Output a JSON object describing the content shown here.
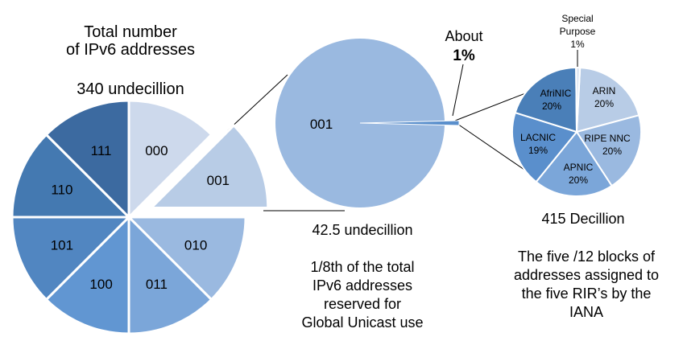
{
  "big_pie": {
    "title_line1": "Total number",
    "title_line2": "of IPv6 addresses",
    "total": "340 undecillion",
    "slices": [
      {
        "label": "000",
        "color": "#cdd9ec"
      },
      {
        "label": "001",
        "color": "#b8cce6"
      },
      {
        "label": "010",
        "color": "#9ab9e0"
      },
      {
        "label": "011",
        "color": "#7ba6d9"
      },
      {
        "label": "100",
        "color": "#6196d2"
      },
      {
        "label": "101",
        "color": "#5186c1"
      },
      {
        "label": "110",
        "color": "#4479b1"
      },
      {
        "label": "111",
        "color": "#3c6aa0"
      }
    ]
  },
  "mid_pie": {
    "label": "001",
    "amount": "42.5 undecillion",
    "about_line1": "About",
    "about_line2": "1%",
    "note_line1": "1/8th of the total",
    "note_line2": "IPv6 addresses",
    "note_line3": "reserved for",
    "note_line4": "Global Unicast use",
    "color": "#9ab9e0",
    "wedge_color": "#5a8fcc"
  },
  "small_pie": {
    "amount": "415 Decillion",
    "special_line1": "Special",
    "special_line2": "Purpose",
    "special_line3": "1%",
    "note_line1": "The five /12 blocks of",
    "note_line2": "addresses assigned to",
    "note_line3": "the five RIR’s by the",
    "note_line4": "IANA",
    "slices": [
      {
        "name": "ARIN",
        "pct": "20%",
        "color": "#b8cce6"
      },
      {
        "name": "RIPE NNC",
        "pct": "20%",
        "color": "#9ab9e0"
      },
      {
        "name": "APNIC",
        "pct": "20%",
        "color": "#7ba6d9"
      },
      {
        "name": "LACNIC",
        "pct": "19%",
        "color": "#5a8fcc"
      },
      {
        "name": "AfriNIC",
        "pct": "20%",
        "color": "#4a7fb8"
      },
      {
        "name": "Special Purpose",
        "pct": "1%",
        "color": "#dfe7f3"
      }
    ]
  }
}
